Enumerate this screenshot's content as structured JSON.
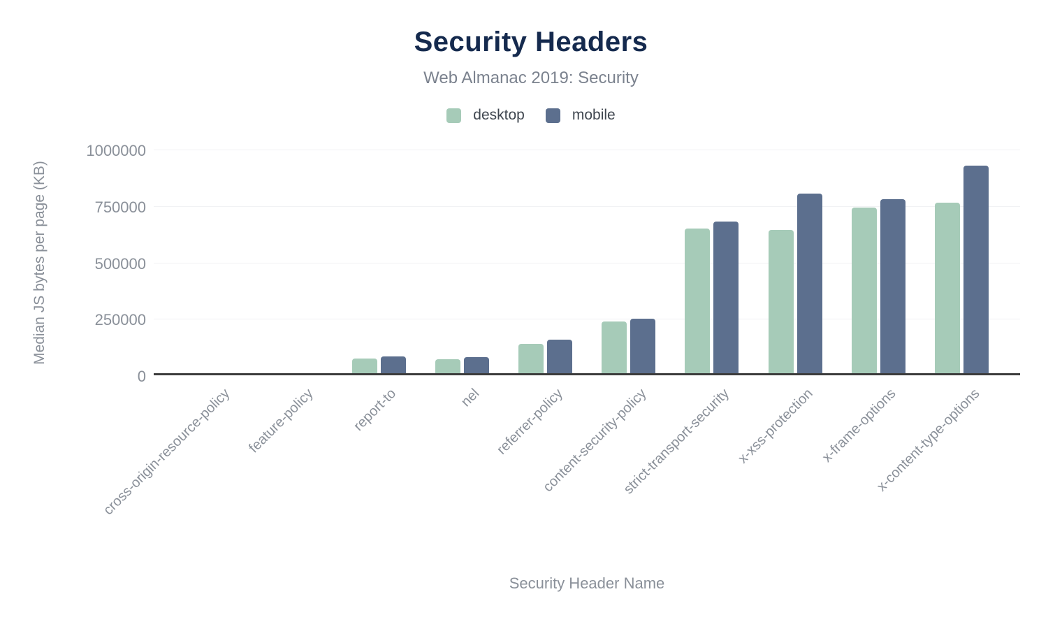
{
  "header": {
    "title": "Security Headers",
    "subtitle": "Web Almanac 2019: Security"
  },
  "chart_data": {
    "type": "bar",
    "title": "Security Headers",
    "subtitle": "Web Almanac 2019: Security",
    "xlabel": "Security Header Name",
    "ylabel": "Median JS bytes per page (KB)",
    "ylim": [
      0,
      1000000
    ],
    "yticks": [
      0,
      250000,
      500000,
      750000,
      1000000
    ],
    "grid": true,
    "legend_position": "top-center",
    "categories": [
      "cross-origin-resource-policy",
      "feature-policy",
      "report-to",
      "nel",
      "referrer-policy",
      "content-security-policy",
      "strict-transport-security",
      "x-xss-protection",
      "x-frame-options",
      "x-content-type-options"
    ],
    "series": [
      {
        "name": "desktop",
        "color": "#a6cbb8",
        "values": [
          0,
          8000,
          75000,
          72000,
          140000,
          238000,
          649000,
          645000,
          743000,
          765000
        ]
      },
      {
        "name": "mobile",
        "color": "#5c6f8e",
        "values": [
          0,
          9000,
          85000,
          80000,
          157000,
          250000,
          681000,
          804000,
          779000,
          928000
        ]
      }
    ]
  },
  "colors": {
    "title": "#152a4e",
    "subtitle": "#7b828e",
    "axis_text": "#8a9099",
    "legend_text": "#3f464f",
    "gridline": "#f1f2f4",
    "axis_line": "#3c3c3c",
    "background": "#ffffff"
  }
}
